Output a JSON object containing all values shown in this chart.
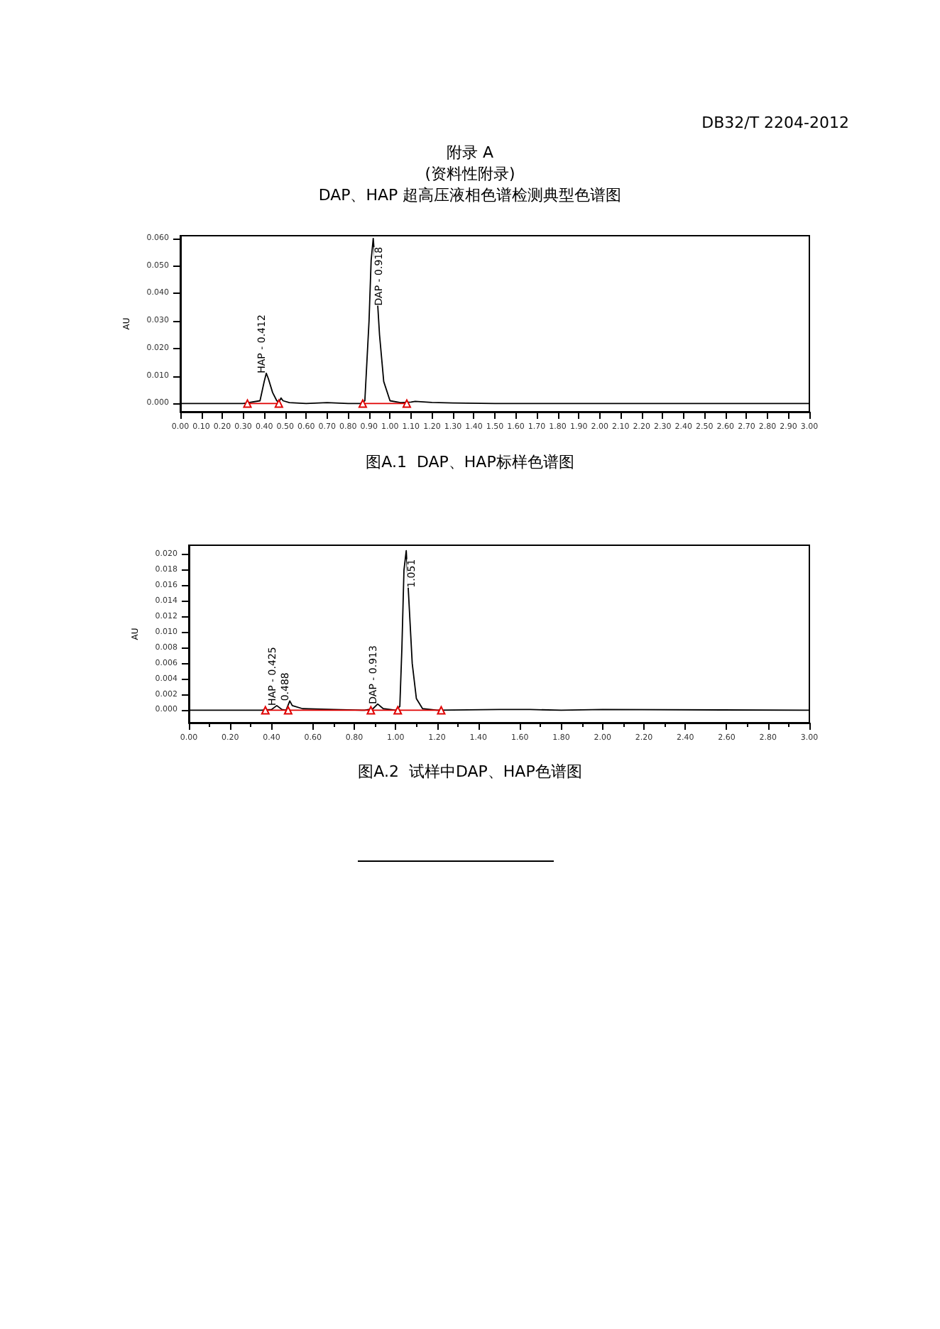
{
  "chart_data": [
    {
      "type": "line",
      "title": "图A.1  DAP、HAP标样色谱图",
      "ylabel": "AU",
      "annotations": [
        "DB32/T 2204-2012",
        "附录 A",
        "(资料性附录)",
        "DAP、HAP 超高压液相色谱检测典型色谱图",
        {
          "text": "HAP - 0.412",
          "x": 0.41,
          "y": 0.011
        },
        {
          "text": "DAP - 0.918",
          "x": 0.92,
          "y": 0.06
        }
      ],
      "xlim": [
        0,
        3
      ],
      "ylim": [
        -0.003,
        0.061
      ],
      "xticks": [
        {
          "value": 0,
          "label": "0.00"
        },
        {
          "value": 0.1,
          "label": "0.10"
        },
        {
          "value": 0.2,
          "label": "0.20"
        },
        {
          "value": 0.3,
          "label": "0.30"
        },
        {
          "value": 0.4,
          "label": "0.40"
        },
        {
          "value": 0.5,
          "label": "0.50"
        },
        {
          "value": 0.6,
          "label": "0.60"
        },
        {
          "value": 0.7,
          "label": "0.70"
        },
        {
          "value": 0.8,
          "label": "0.80"
        },
        {
          "value": 0.9,
          "label": "0.90"
        },
        {
          "value": 1,
          "label": "1.00"
        },
        {
          "value": 1.1,
          "label": "1.10"
        },
        {
          "value": 1.2,
          "label": "1.20"
        },
        {
          "value": 1.3,
          "label": "1.30"
        },
        {
          "value": 1.4,
          "label": "1.40"
        },
        {
          "value": 1.5,
          "label": "1.50"
        },
        {
          "value": 1.6,
          "label": "1.60"
        },
        {
          "value": 1.7,
          "label": "1.70"
        },
        {
          "value": 1.8,
          "label": "1.80"
        },
        {
          "value": 1.9,
          "label": "1.90"
        },
        {
          "value": 2,
          "label": "2.00"
        },
        {
          "value": 2.1,
          "label": "2.10"
        },
        {
          "value": 2.2,
          "label": "2.20"
        },
        {
          "value": 2.3,
          "label": "2.30"
        },
        {
          "value": 2.4,
          "label": "2.40"
        },
        {
          "value": 2.5,
          "label": "2.50"
        },
        {
          "value": 2.6,
          "label": "2.60"
        },
        {
          "value": 2.7,
          "label": "2.70"
        },
        {
          "value": 2.8,
          "label": "2.80"
        },
        {
          "value": 2.9,
          "label": "2.90"
        },
        {
          "value": 3,
          "label": "3.00"
        }
      ],
      "yticks": [
        {
          "value": 0,
          "label": "0.000"
        },
        {
          "value": 0.01,
          "label": "0.010"
        },
        {
          "value": 0.02,
          "label": "0.020"
        },
        {
          "value": 0.03,
          "label": "0.030"
        },
        {
          "value": 0.04,
          "label": "0.040"
        },
        {
          "value": 0.05,
          "label": "0.050"
        },
        {
          "value": 0.06,
          "label": "0.060"
        }
      ],
      "series": [
        {
          "color": "#000000",
          "marker": "none",
          "x": [
            0,
            0.3,
            0.38,
            0.4,
            0.41,
            0.42,
            0.44,
            0.46,
            0.47,
            0.48,
            0.49,
            0.52,
            0.6,
            0.7,
            0.8,
            0.86,
            0.88,
            0.9,
            0.91,
            0.92,
            0.93,
            0.95,
            0.97,
            1,
            1.05,
            1.1,
            1.12,
            1.2,
            1.3,
            1.5,
            2,
            3
          ],
          "values": [
            0,
            0,
            0.001,
            0.008,
            0.011,
            0.009,
            0.004,
            0.001,
            0.0005,
            0.002,
            0.001,
            0.0003,
            0,
            0.0003,
            0,
            0,
            0.001,
            0.03,
            0.052,
            0.06,
            0.05,
            0.025,
            0.008,
            0.001,
            0.0003,
            0.0005,
            0.0008,
            0.0004,
            0.0002,
            0,
            0,
            0
          ]
        },
        {
          "color": "#e00000",
          "marker": "triangle",
          "x": [
            0.32,
            0.47,
            0.7,
            0.87,
            1.08
          ],
          "values": [
            0,
            0,
            null,
            0,
            0
          ]
        }
      ]
    },
    {
      "type": "line",
      "title": "图A.2  试样中DAP、HAP色谱图",
      "ylabel": "AU",
      "annotations": [
        {
          "text": "HAP - 0.425",
          "x": 0.425,
          "y": 0.0006
        },
        {
          "text": "0.488",
          "x": 0.488,
          "y": 0.0012
        },
        {
          "text": "DAP - 0.913",
          "x": 0.913,
          "y": 0.0008
        },
        {
          "text": "1.051",
          "x": 1.051,
          "y": 0.0205
        }
      ],
      "xlim": [
        0,
        3
      ],
      "ylim": [
        -0.0016,
        0.0212
      ],
      "xticks": [
        {
          "value": 0,
          "label": "0.00"
        },
        {
          "value": 0.2,
          "label": "0.20"
        },
        {
          "value": 0.4,
          "label": "0.40"
        },
        {
          "value": 0.6,
          "label": "0.60"
        },
        {
          "value": 0.8,
          "label": "0.80"
        },
        {
          "value": 1,
          "label": "1.00"
        },
        {
          "value": 1.2,
          "label": "1.20"
        },
        {
          "value": 1.4,
          "label": "1.40"
        },
        {
          "value": 1.6,
          "label": "1.60"
        },
        {
          "value": 1.8,
          "label": "1.80"
        },
        {
          "value": 2,
          "label": "2.00"
        },
        {
          "value": 2.2,
          "label": "2.20"
        },
        {
          "value": 2.4,
          "label": "2.40"
        },
        {
          "value": 2.6,
          "label": "2.60"
        },
        {
          "value": 2.8,
          "label": "2.80"
        },
        {
          "value": 3,
          "label": "3.00"
        }
      ],
      "yticks": [
        {
          "value": 0,
          "label": "0.000"
        },
        {
          "value": 0.002,
          "label": "0.002"
        },
        {
          "value": 0.004,
          "label": "0.004"
        },
        {
          "value": 0.006,
          "label": "0.006"
        },
        {
          "value": 0.008,
          "label": "0.008"
        },
        {
          "value": 0.01,
          "label": "0.010"
        },
        {
          "value": 0.012,
          "label": "0.012"
        },
        {
          "value": 0.014,
          "label": "0.014"
        },
        {
          "value": 0.016,
          "label": "0.016"
        },
        {
          "value": 0.018,
          "label": "0.018"
        },
        {
          "value": 0.02,
          "label": "0.020"
        }
      ],
      "series": [
        {
          "color": "#000000",
          "marker": "none",
          "x": [
            0,
            0.35,
            0.4,
            0.425,
            0.45,
            0.47,
            0.488,
            0.5,
            0.55,
            0.7,
            0.85,
            0.89,
            0.913,
            0.94,
            1,
            1.02,
            1.03,
            1.04,
            1.051,
            1.06,
            1.08,
            1.1,
            1.13,
            1.2,
            1.5,
            1.65,
            1.8,
            2,
            3
          ],
          "values": [
            0,
            0,
            0.0001,
            0.0006,
            0.0001,
            0,
            0.0012,
            0.0006,
            0.0002,
            0.0001,
            0,
            0.0002,
            0.0008,
            0.0002,
            0,
            0.0005,
            0.008,
            0.018,
            0.0205,
            0.016,
            0.006,
            0.0015,
            0.0002,
            0,
            0.0001,
            0.0001,
            0,
            0.0001,
            0
          ]
        },
        {
          "color": "#e00000",
          "marker": "triangle",
          "x": [
            0.37,
            0.48,
            0.88,
            1.01,
            1.22
          ],
          "values": [
            0,
            0,
            0,
            0,
            0
          ]
        }
      ]
    }
  ]
}
